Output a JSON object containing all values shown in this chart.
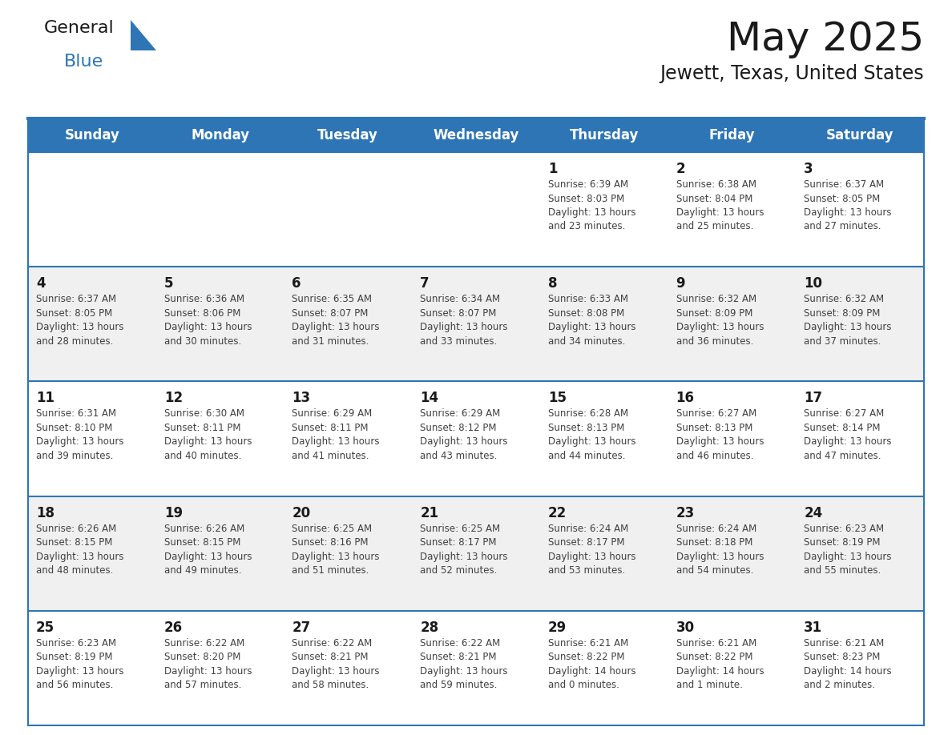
{
  "title": "May 2025",
  "subtitle": "Jewett, Texas, United States",
  "header_bg": "#2E75B6",
  "header_text_color": "#FFFFFF",
  "days_of_week": [
    "Sunday",
    "Monday",
    "Tuesday",
    "Wednesday",
    "Thursday",
    "Friday",
    "Saturday"
  ],
  "cell_bg_white": "#FFFFFF",
  "cell_bg_gray": "#F0F0F0",
  "cell_border_color": "#2E75B6",
  "text_color": "#404040",
  "day_num_color": "#1a1a1a",
  "weeks": [
    [
      {
        "day": "",
        "info": ""
      },
      {
        "day": "",
        "info": ""
      },
      {
        "day": "",
        "info": ""
      },
      {
        "day": "",
        "info": ""
      },
      {
        "day": "1",
        "info": "Sunrise: 6:39 AM\nSunset: 8:03 PM\nDaylight: 13 hours\nand 23 minutes."
      },
      {
        "day": "2",
        "info": "Sunrise: 6:38 AM\nSunset: 8:04 PM\nDaylight: 13 hours\nand 25 minutes."
      },
      {
        "day": "3",
        "info": "Sunrise: 6:37 AM\nSunset: 8:05 PM\nDaylight: 13 hours\nand 27 minutes."
      }
    ],
    [
      {
        "day": "4",
        "info": "Sunrise: 6:37 AM\nSunset: 8:05 PM\nDaylight: 13 hours\nand 28 minutes."
      },
      {
        "day": "5",
        "info": "Sunrise: 6:36 AM\nSunset: 8:06 PM\nDaylight: 13 hours\nand 30 minutes."
      },
      {
        "day": "6",
        "info": "Sunrise: 6:35 AM\nSunset: 8:07 PM\nDaylight: 13 hours\nand 31 minutes."
      },
      {
        "day": "7",
        "info": "Sunrise: 6:34 AM\nSunset: 8:07 PM\nDaylight: 13 hours\nand 33 minutes."
      },
      {
        "day": "8",
        "info": "Sunrise: 6:33 AM\nSunset: 8:08 PM\nDaylight: 13 hours\nand 34 minutes."
      },
      {
        "day": "9",
        "info": "Sunrise: 6:32 AM\nSunset: 8:09 PM\nDaylight: 13 hours\nand 36 minutes."
      },
      {
        "day": "10",
        "info": "Sunrise: 6:32 AM\nSunset: 8:09 PM\nDaylight: 13 hours\nand 37 minutes."
      }
    ],
    [
      {
        "day": "11",
        "info": "Sunrise: 6:31 AM\nSunset: 8:10 PM\nDaylight: 13 hours\nand 39 minutes."
      },
      {
        "day": "12",
        "info": "Sunrise: 6:30 AM\nSunset: 8:11 PM\nDaylight: 13 hours\nand 40 minutes."
      },
      {
        "day": "13",
        "info": "Sunrise: 6:29 AM\nSunset: 8:11 PM\nDaylight: 13 hours\nand 41 minutes."
      },
      {
        "day": "14",
        "info": "Sunrise: 6:29 AM\nSunset: 8:12 PM\nDaylight: 13 hours\nand 43 minutes."
      },
      {
        "day": "15",
        "info": "Sunrise: 6:28 AM\nSunset: 8:13 PM\nDaylight: 13 hours\nand 44 minutes."
      },
      {
        "day": "16",
        "info": "Sunrise: 6:27 AM\nSunset: 8:13 PM\nDaylight: 13 hours\nand 46 minutes."
      },
      {
        "day": "17",
        "info": "Sunrise: 6:27 AM\nSunset: 8:14 PM\nDaylight: 13 hours\nand 47 minutes."
      }
    ],
    [
      {
        "day": "18",
        "info": "Sunrise: 6:26 AM\nSunset: 8:15 PM\nDaylight: 13 hours\nand 48 minutes."
      },
      {
        "day": "19",
        "info": "Sunrise: 6:26 AM\nSunset: 8:15 PM\nDaylight: 13 hours\nand 49 minutes."
      },
      {
        "day": "20",
        "info": "Sunrise: 6:25 AM\nSunset: 8:16 PM\nDaylight: 13 hours\nand 51 minutes."
      },
      {
        "day": "21",
        "info": "Sunrise: 6:25 AM\nSunset: 8:17 PM\nDaylight: 13 hours\nand 52 minutes."
      },
      {
        "day": "22",
        "info": "Sunrise: 6:24 AM\nSunset: 8:17 PM\nDaylight: 13 hours\nand 53 minutes."
      },
      {
        "day": "23",
        "info": "Sunrise: 6:24 AM\nSunset: 8:18 PM\nDaylight: 13 hours\nand 54 minutes."
      },
      {
        "day": "24",
        "info": "Sunrise: 6:23 AM\nSunset: 8:19 PM\nDaylight: 13 hours\nand 55 minutes."
      }
    ],
    [
      {
        "day": "25",
        "info": "Sunrise: 6:23 AM\nSunset: 8:19 PM\nDaylight: 13 hours\nand 56 minutes."
      },
      {
        "day": "26",
        "info": "Sunrise: 6:22 AM\nSunset: 8:20 PM\nDaylight: 13 hours\nand 57 minutes."
      },
      {
        "day": "27",
        "info": "Sunrise: 6:22 AM\nSunset: 8:21 PM\nDaylight: 13 hours\nand 58 minutes."
      },
      {
        "day": "28",
        "info": "Sunrise: 6:22 AM\nSunset: 8:21 PM\nDaylight: 13 hours\nand 59 minutes."
      },
      {
        "day": "29",
        "info": "Sunrise: 6:21 AM\nSunset: 8:22 PM\nDaylight: 14 hours\nand 0 minutes."
      },
      {
        "day": "30",
        "info": "Sunrise: 6:21 AM\nSunset: 8:22 PM\nDaylight: 14 hours\nand 1 minute."
      },
      {
        "day": "31",
        "info": "Sunrise: 6:21 AM\nSunset: 8:23 PM\nDaylight: 14 hours\nand 2 minutes."
      }
    ]
  ],
  "logo_general_color": "#1a1a1a",
  "logo_blue_color": "#2E75B6",
  "logo_triangle_color": "#2E75B6",
  "fig_width": 11.88,
  "fig_height": 9.18,
  "dpi": 100
}
